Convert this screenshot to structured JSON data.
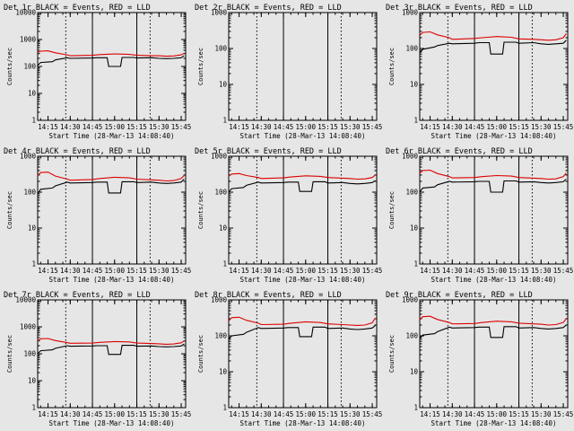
{
  "colors": {
    "background": "#e6e6e6",
    "events": "#000000",
    "lld": "#dd0000",
    "frame": "#000000"
  },
  "chart_data": [
    {
      "type": "line",
      "title": "Det 1r BLACK = Events, RED = LLD",
      "ylabel": "Counts/sec",
      "xlabel": "Start Time (28-Mar-13 14:08:40)",
      "yscale": "log",
      "yticks": [
        "1",
        "10",
        "100",
        "1000",
        "10000"
      ],
      "xticks": [
        "14:15",
        "14:30",
        "14:45",
        "15:00",
        "15:15",
        "15:30",
        "15:45"
      ],
      "series": [
        {
          "name": "Events",
          "x": [
            "14:08",
            "14:10",
            "14:18",
            "14:20",
            "14:28",
            "14:30",
            "14:45",
            "14:48",
            "14:55",
            "14:56",
            "15:04",
            "15:05",
            "15:13",
            "15:15",
            "15:25",
            "15:30",
            "15:35",
            "15:40",
            "15:45",
            "15:47"
          ],
          "values": [
            110,
            140,
            150,
            175,
            210,
            200,
            205,
            210,
            210,
            100,
            100,
            215,
            215,
            205,
            210,
            200,
            195,
            200,
            210,
            250
          ]
        },
        {
          "name": "LLD",
          "x": [
            "14:08",
            "14:10",
            "14:15",
            "14:20",
            "14:28",
            "14:30",
            "14:45",
            "14:50",
            "15:00",
            "15:10",
            "15:15",
            "15:25",
            "15:30",
            "15:35",
            "15:40",
            "15:45",
            "15:47"
          ],
          "values": [
            330,
            370,
            380,
            320,
            270,
            250,
            260,
            275,
            290,
            280,
            260,
            250,
            250,
            240,
            245,
            270,
            310
          ]
        }
      ]
    },
    {
      "type": "line",
      "title": "Det 2r BLACK = Events, RED = LLD",
      "ylabel": "Counts/sec",
      "xlabel": "Start Time (28-Mar-13 14:08:40)",
      "yscale": "log",
      "yticks": [
        "1",
        "10",
        "100",
        "1000"
      ],
      "xticks": [
        "14:15",
        "14:30",
        "14:45",
        "15:00",
        "15:15",
        "15:30",
        "15:45"
      ],
      "series": []
    },
    {
      "type": "line",
      "title": "Det 3r BLACK = Events, RED = LLD",
      "ylabel": "Counts/sec",
      "xlabel": "Start Time (28-Mar-13 14:08:40)",
      "yscale": "log",
      "yticks": [
        "1",
        "10",
        "100",
        "1000"
      ],
      "xticks": [
        "14:15",
        "14:30",
        "14:45",
        "15:00",
        "15:15",
        "15:30",
        "15:45"
      ],
      "series": [
        {
          "name": "Events",
          "x": [
            "14:08",
            "14:10",
            "14:18",
            "14:20",
            "14:28",
            "14:30",
            "14:45",
            "14:48",
            "14:55",
            "14:56",
            "15:04",
            "15:05",
            "15:13",
            "15:15",
            "15:25",
            "15:30",
            "15:35",
            "15:40",
            "15:45",
            "15:47"
          ],
          "values": [
            75,
            95,
            110,
            120,
            140,
            135,
            140,
            145,
            145,
            70,
            70,
            150,
            150,
            140,
            145,
            135,
            130,
            135,
            140,
            170
          ]
        },
        {
          "name": "LLD",
          "x": [
            "14:08",
            "14:10",
            "14:15",
            "14:20",
            "14:28",
            "14:30",
            "14:45",
            "14:50",
            "15:00",
            "15:10",
            "15:15",
            "15:25",
            "15:30",
            "15:35",
            "15:40",
            "15:45",
            "15:47"
          ],
          "values": [
            230,
            280,
            290,
            240,
            200,
            180,
            190,
            200,
            215,
            205,
            185,
            180,
            175,
            170,
            175,
            200,
            260
          ]
        }
      ]
    },
    {
      "type": "line",
      "title": "Det 4r BLACK = Events, RED = LLD",
      "ylabel": "Counts/sec",
      "xlabel": "Start Time (28-Mar-13 14:08:40)",
      "yscale": "log",
      "yticks": [
        "1",
        "10",
        "100",
        "1000"
      ],
      "xticks": [
        "14:15",
        "14:30",
        "14:45",
        "15:00",
        "15:15",
        "15:30",
        "15:45"
      ],
      "series": [
        {
          "name": "Events",
          "x": [
            "14:08",
            "14:10",
            "14:18",
            "14:20",
            "14:28",
            "14:30",
            "14:45",
            "14:48",
            "14:55",
            "14:56",
            "15:04",
            "15:05",
            "15:13",
            "15:15",
            "15:25",
            "15:30",
            "15:35",
            "15:40",
            "15:45",
            "15:47"
          ],
          "values": [
            90,
            120,
            130,
            150,
            190,
            180,
            185,
            190,
            190,
            95,
            95,
            195,
            195,
            185,
            190,
            180,
            175,
            180,
            190,
            230
          ]
        },
        {
          "name": "LLD",
          "x": [
            "14:08",
            "14:10",
            "14:15",
            "14:20",
            "14:28",
            "14:30",
            "14:45",
            "14:50",
            "15:00",
            "15:10",
            "15:15",
            "15:25",
            "15:30",
            "15:35",
            "15:40",
            "15:45",
            "15:47"
          ],
          "values": [
            290,
            350,
            360,
            280,
            230,
            215,
            225,
            240,
            260,
            250,
            230,
            220,
            215,
            205,
            210,
            240,
            290
          ]
        }
      ]
    },
    {
      "type": "line",
      "title": "Det 5r BLACK = Events, RED = LLD",
      "ylabel": "Counts/sec",
      "xlabel": "Start Time (28-Mar-13 14:08:40)",
      "yscale": "log",
      "yticks": [
        "1",
        "10",
        "100",
        "1000"
      ],
      "xticks": [
        "14:15",
        "14:30",
        "14:45",
        "15:00",
        "15:15",
        "15:30",
        "15:45"
      ],
      "series": [
        {
          "name": "Events",
          "x": [
            "14:08",
            "14:10",
            "14:18",
            "14:20",
            "14:28",
            "14:30",
            "14:45",
            "14:48",
            "14:55",
            "14:56",
            "15:04",
            "15:05",
            "15:13",
            "15:15",
            "15:25",
            "15:30",
            "15:35",
            "15:40",
            "15:45",
            "15:47"
          ],
          "values": [
            100,
            125,
            135,
            155,
            190,
            180,
            185,
            190,
            190,
            105,
            105,
            195,
            195,
            180,
            185,
            175,
            170,
            175,
            185,
            210
          ]
        },
        {
          "name": "LLD",
          "x": [
            "14:08",
            "14:10",
            "14:15",
            "14:20",
            "14:28",
            "14:30",
            "14:45",
            "14:50",
            "15:00",
            "15:10",
            "15:15",
            "15:25",
            "15:30",
            "15:35",
            "15:40",
            "15:45",
            "15:47"
          ],
          "values": [
            280,
            320,
            330,
            290,
            255,
            240,
            250,
            265,
            285,
            275,
            255,
            245,
            240,
            230,
            235,
            255,
            300
          ]
        }
      ]
    },
    {
      "type": "line",
      "title": "Det 6r BLACK = Events, RED = LLD",
      "ylabel": "Counts/sec",
      "xlabel": "Start Time (28-Mar-13 14:08:40)",
      "yscale": "log",
      "yticks": [
        "1",
        "10",
        "100",
        "1000"
      ],
      "xticks": [
        "14:15",
        "14:30",
        "14:45",
        "15:00",
        "15:15",
        "15:30",
        "15:45"
      ],
      "series": [
        {
          "name": "Events",
          "x": [
            "14:08",
            "14:10",
            "14:18",
            "14:20",
            "14:28",
            "14:30",
            "14:45",
            "14:48",
            "14:55",
            "14:56",
            "15:04",
            "15:05",
            "15:13",
            "15:15",
            "15:25",
            "15:30",
            "15:35",
            "15:40",
            "15:45",
            "15:47"
          ],
          "values": [
            100,
            130,
            140,
            160,
            200,
            190,
            195,
            200,
            200,
            100,
            100,
            205,
            205,
            190,
            195,
            185,
            180,
            185,
            195,
            230
          ]
        },
        {
          "name": "LLD",
          "x": [
            "14:08",
            "14:10",
            "14:15",
            "14:20",
            "14:28",
            "14:30",
            "14:45",
            "14:50",
            "15:00",
            "15:10",
            "15:15",
            "15:25",
            "15:30",
            "15:35",
            "15:40",
            "15:45",
            "15:47"
          ],
          "values": [
            330,
            400,
            410,
            330,
            270,
            250,
            255,
            270,
            290,
            280,
            255,
            245,
            240,
            230,
            235,
            270,
            340
          ]
        }
      ]
    },
    {
      "type": "line",
      "title": "Det 7r BLACK = Events, RED = LLD",
      "ylabel": "Counts/sec",
      "xlabel": "Start Time (28-Mar-13 14:08:40)",
      "yscale": "log",
      "yticks": [
        "1",
        "10",
        "100",
        "1000",
        "10000"
      ],
      "xticks": [
        "14:15",
        "14:30",
        "14:45",
        "15:00",
        "15:15",
        "15:30",
        "15:45"
      ],
      "series": [
        {
          "name": "Events",
          "x": [
            "14:08",
            "14:10",
            "14:18",
            "14:20",
            "14:28",
            "14:30",
            "14:45",
            "14:48",
            "14:55",
            "14:56",
            "15:04",
            "15:05",
            "15:13",
            "15:15",
            "15:25",
            "15:30",
            "15:35",
            "15:40",
            "15:45",
            "15:47"
          ],
          "values": [
            100,
            130,
            140,
            160,
            200,
            190,
            195,
            200,
            200,
            95,
            95,
            205,
            205,
            190,
            195,
            185,
            180,
            185,
            195,
            230
          ]
        },
        {
          "name": "LLD",
          "x": [
            "14:08",
            "14:10",
            "14:15",
            "14:20",
            "14:28",
            "14:30",
            "14:45",
            "14:50",
            "15:00",
            "15:10",
            "15:15",
            "15:25",
            "15:30",
            "15:35",
            "15:40",
            "15:45",
            "15:47"
          ],
          "values": [
            300,
            360,
            370,
            310,
            260,
            245,
            250,
            265,
            285,
            275,
            250,
            240,
            235,
            225,
            230,
            255,
            300
          ]
        }
      ]
    },
    {
      "type": "line",
      "title": "Det 8r BLACK = Events, RED = LLD",
      "ylabel": "Counts/sec",
      "xlabel": "Start Time (28-Mar-13 14:08:40)",
      "yscale": "log",
      "yticks": [
        "1",
        "10",
        "100",
        "1000"
      ],
      "xticks": [
        "14:15",
        "14:30",
        "14:45",
        "15:00",
        "15:15",
        "15:30",
        "15:45"
      ],
      "series": [
        {
          "name": "Events",
          "x": [
            "14:08",
            "14:10",
            "14:18",
            "14:20",
            "14:28",
            "14:30",
            "14:45",
            "14:48",
            "14:55",
            "14:56",
            "15:04",
            "15:05",
            "15:13",
            "15:15",
            "15:25",
            "15:30",
            "15:35",
            "15:40",
            "15:45",
            "15:47"
          ],
          "values": [
            80,
            100,
            110,
            125,
            170,
            160,
            165,
            170,
            170,
            95,
            95,
            175,
            175,
            160,
            165,
            155,
            150,
            155,
            165,
            195
          ]
        },
        {
          "name": "LLD",
          "x": [
            "14:08",
            "14:10",
            "14:15",
            "14:20",
            "14:28",
            "14:30",
            "14:45",
            "14:50",
            "15:00",
            "15:10",
            "15:15",
            "15:25",
            "15:30",
            "15:35",
            "15:40",
            "15:45",
            "15:47"
          ],
          "values": [
            260,
            320,
            330,
            270,
            225,
            205,
            210,
            225,
            245,
            235,
            215,
            205,
            200,
            195,
            200,
            230,
            310
          ]
        }
      ]
    },
    {
      "type": "line",
      "title": "Det 9r BLACK = Events, RED = LLD",
      "ylabel": "Counts/sec",
      "xlabel": "Start Time (28-Mar-13 14:08:40)",
      "yscale": "log",
      "yticks": [
        "1",
        "10",
        "100",
        "1000"
      ],
      "xticks": [
        "14:15",
        "14:30",
        "14:45",
        "15:00",
        "15:15",
        "15:30",
        "15:45"
      ],
      "series": [
        {
          "name": "Events",
          "x": [
            "14:08",
            "14:10",
            "14:18",
            "14:20",
            "14:28",
            "14:30",
            "14:45",
            "14:48",
            "14:55",
            "14:56",
            "15:04",
            "15:05",
            "15:13",
            "15:15",
            "15:25",
            "15:30",
            "15:35",
            "15:40",
            "15:45",
            "15:47"
          ],
          "values": [
            85,
            105,
            115,
            130,
            175,
            165,
            170,
            175,
            175,
            90,
            90,
            180,
            180,
            165,
            170,
            160,
            155,
            160,
            170,
            200
          ]
        },
        {
          "name": "LLD",
          "x": [
            "14:08",
            "14:10",
            "14:15",
            "14:20",
            "14:28",
            "14:30",
            "14:45",
            "14:50",
            "15:00",
            "15:10",
            "15:15",
            "15:25",
            "15:30",
            "15:35",
            "15:40",
            "15:45",
            "15:47"
          ],
          "values": [
            280,
            340,
            350,
            285,
            235,
            215,
            220,
            235,
            255,
            245,
            225,
            215,
            210,
            200,
            205,
            235,
            300
          ]
        }
      ]
    }
  ]
}
